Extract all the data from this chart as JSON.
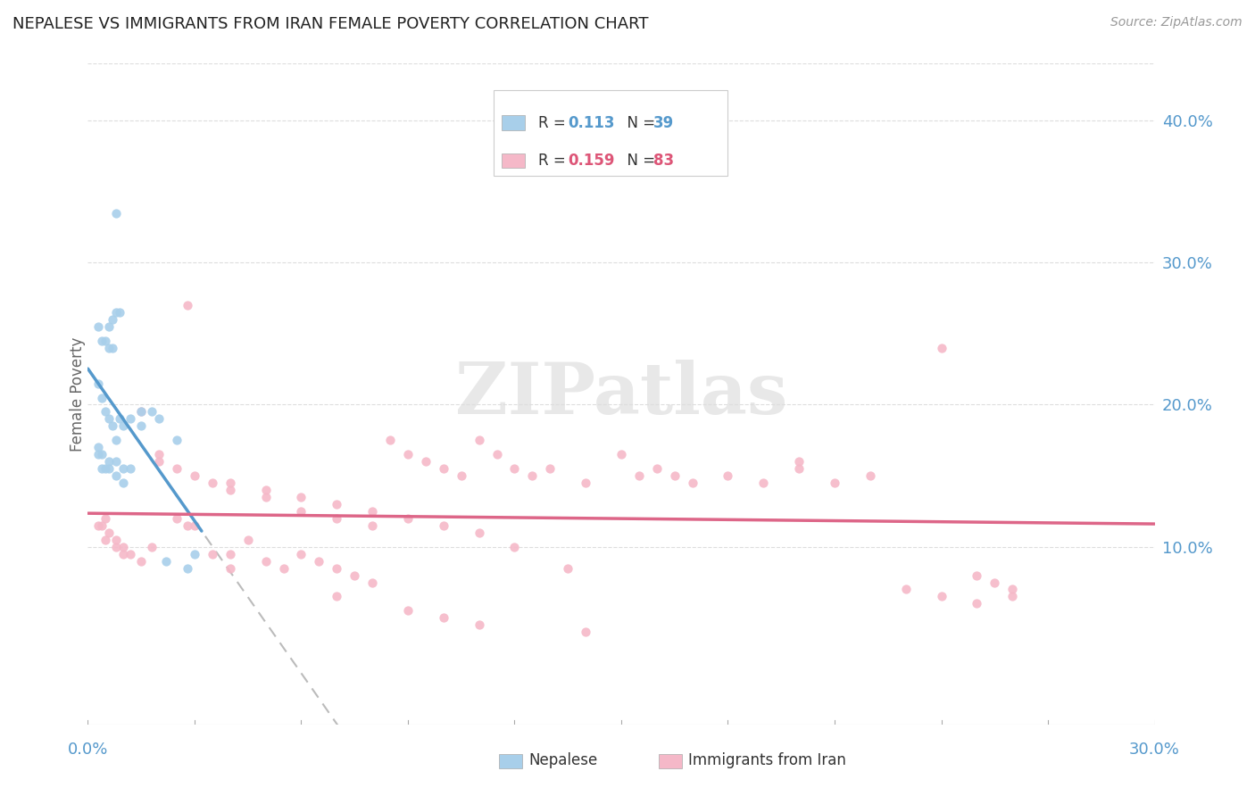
{
  "title": "NEPALESE VS IMMIGRANTS FROM IRAN FEMALE POVERTY CORRELATION CHART",
  "source": "Source: ZipAtlas.com",
  "ylabel": "Female Poverty",
  "ytick_labels": [
    "10.0%",
    "20.0%",
    "30.0%",
    "40.0%"
  ],
  "ytick_values": [
    0.1,
    0.2,
    0.3,
    0.4
  ],
  "xlim": [
    0.0,
    0.3
  ],
  "ylim": [
    -0.025,
    0.44
  ],
  "blue_scatter_color": "#A8CFEA",
  "pink_scatter_color": "#F5B8C8",
  "blue_line_color": "#5599CC",
  "pink_line_color": "#DD6688",
  "dashed_line_color": "#BBBBBB",
  "axis_text_color": "#5599CC",
  "title_color": "#222222",
  "ylabel_color": "#666666",
  "watermark": "ZIPatlas",
  "legend_R1": "R = ",
  "legend_V1": "0.113",
  "legend_N1_label": "N = ",
  "legend_N1": "39",
  "legend_R2": "R = ",
  "legend_V2": "0.159",
  "legend_N2_label": "N = ",
  "legend_N2": "83",
  "nepalese_x": [
    0.008,
    0.009,
    0.003,
    0.004,
    0.005,
    0.006,
    0.007,
    0.006,
    0.007,
    0.008,
    0.003,
    0.004,
    0.005,
    0.006,
    0.007,
    0.008,
    0.009,
    0.01,
    0.012,
    0.015,
    0.003,
    0.004,
    0.005,
    0.006,
    0.008,
    0.01,
    0.003,
    0.004,
    0.006,
    0.008,
    0.01,
    0.012,
    0.015,
    0.018,
    0.02,
    0.025,
    0.03,
    0.022,
    0.028
  ],
  "nepalese_y": [
    0.335,
    0.265,
    0.255,
    0.245,
    0.245,
    0.24,
    0.24,
    0.255,
    0.26,
    0.265,
    0.215,
    0.205,
    0.195,
    0.19,
    0.185,
    0.175,
    0.19,
    0.185,
    0.19,
    0.195,
    0.165,
    0.155,
    0.155,
    0.155,
    0.15,
    0.145,
    0.17,
    0.165,
    0.16,
    0.16,
    0.155,
    0.155,
    0.185,
    0.195,
    0.19,
    0.175,
    0.095,
    0.09,
    0.085
  ],
  "iran_x": [
    0.003,
    0.004,
    0.005,
    0.006,
    0.008,
    0.01,
    0.012,
    0.015,
    0.018,
    0.02,
    0.025,
    0.028,
    0.03,
    0.035,
    0.04,
    0.045,
    0.05,
    0.055,
    0.06,
    0.065,
    0.07,
    0.075,
    0.08,
    0.085,
    0.09,
    0.095,
    0.1,
    0.105,
    0.11,
    0.115,
    0.12,
    0.125,
    0.13,
    0.135,
    0.14,
    0.15,
    0.155,
    0.16,
    0.165,
    0.17,
    0.18,
    0.19,
    0.2,
    0.21,
    0.22,
    0.23,
    0.24,
    0.25,
    0.255,
    0.26,
    0.005,
    0.008,
    0.01,
    0.015,
    0.02,
    0.025,
    0.03,
    0.035,
    0.04,
    0.05,
    0.06,
    0.07,
    0.08,
    0.04,
    0.05,
    0.06,
    0.07,
    0.08,
    0.09,
    0.1,
    0.11,
    0.12,
    0.028,
    0.04,
    0.07,
    0.09,
    0.1,
    0.11,
    0.14,
    0.2,
    0.24,
    0.25,
    0.26
  ],
  "iran_y": [
    0.115,
    0.115,
    0.12,
    0.11,
    0.105,
    0.1,
    0.095,
    0.195,
    0.1,
    0.165,
    0.12,
    0.115,
    0.115,
    0.095,
    0.085,
    0.105,
    0.09,
    0.085,
    0.095,
    0.09,
    0.085,
    0.08,
    0.075,
    0.175,
    0.165,
    0.16,
    0.155,
    0.15,
    0.175,
    0.165,
    0.155,
    0.15,
    0.155,
    0.085,
    0.145,
    0.165,
    0.15,
    0.155,
    0.15,
    0.145,
    0.15,
    0.145,
    0.155,
    0.145,
    0.15,
    0.07,
    0.065,
    0.06,
    0.075,
    0.07,
    0.105,
    0.1,
    0.095,
    0.09,
    0.16,
    0.155,
    0.15,
    0.145,
    0.14,
    0.135,
    0.125,
    0.12,
    0.115,
    0.145,
    0.14,
    0.135,
    0.13,
    0.125,
    0.12,
    0.115,
    0.11,
    0.1,
    0.27,
    0.095,
    0.065,
    0.055,
    0.05,
    0.045,
    0.04,
    0.16,
    0.24,
    0.08,
    0.065
  ]
}
